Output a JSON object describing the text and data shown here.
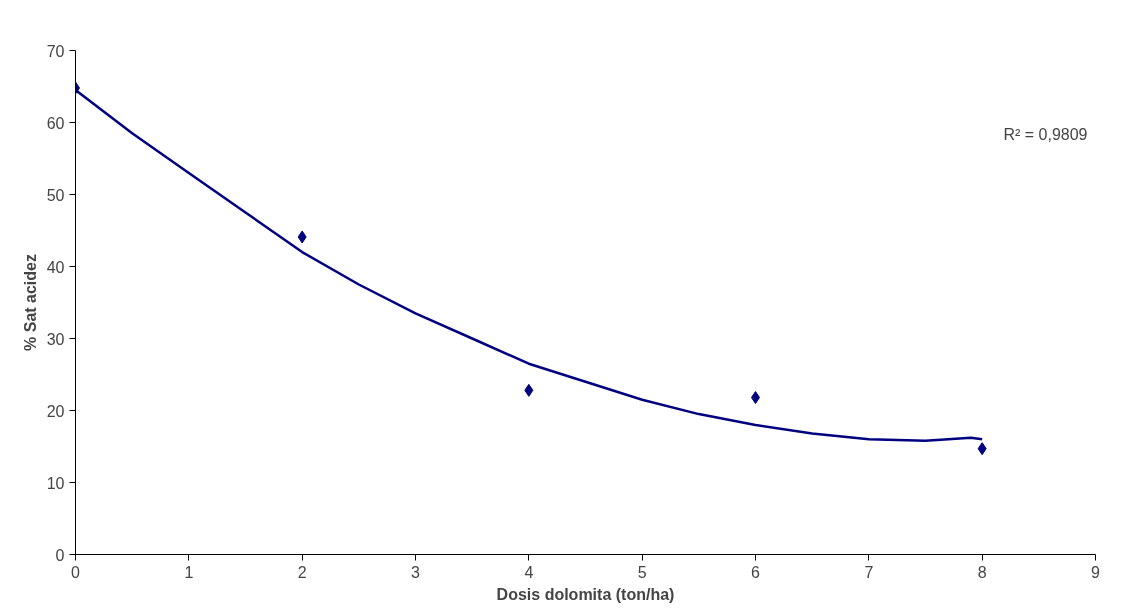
{
  "chart_data": {
    "type": "scatter",
    "xlabel": "Dosis dolomita (ton/ha)",
    "ylabel": "% Sat acidez",
    "xlim": [
      0,
      9
    ],
    "ylim": [
      0,
      70
    ],
    "xticks": [
      0,
      1,
      2,
      3,
      4,
      5,
      6,
      7,
      8,
      9
    ],
    "yticks": [
      0,
      10,
      20,
      30,
      40,
      50,
      60,
      70
    ],
    "grid": false,
    "marker": "diamond",
    "series": [
      {
        "color": "#000080",
        "x": [
          0,
          2,
          4,
          6,
          8
        ],
        "values": [
          64.8,
          44.1,
          22.8,
          21.8,
          14.7
        ]
      },
      {
        "type": "line",
        "color": "#000080",
        "marker": "none",
        "line_style": "solid",
        "x": [
          0,
          0.5,
          1,
          1.5,
          2,
          2.5,
          3,
          3.5,
          4,
          4.5,
          5,
          5.5,
          6,
          6.5,
          7,
          7.5,
          7.9,
          8
        ],
        "values": [
          64.5,
          58.5,
          53,
          47.5,
          42,
          37.5,
          33.5,
          30,
          26.5,
          24,
          21.5,
          19.5,
          18,
          16.8,
          16,
          15.8,
          16.2,
          16
        ]
      }
    ],
    "annotations": [
      "R² = 0,9809"
    ]
  }
}
